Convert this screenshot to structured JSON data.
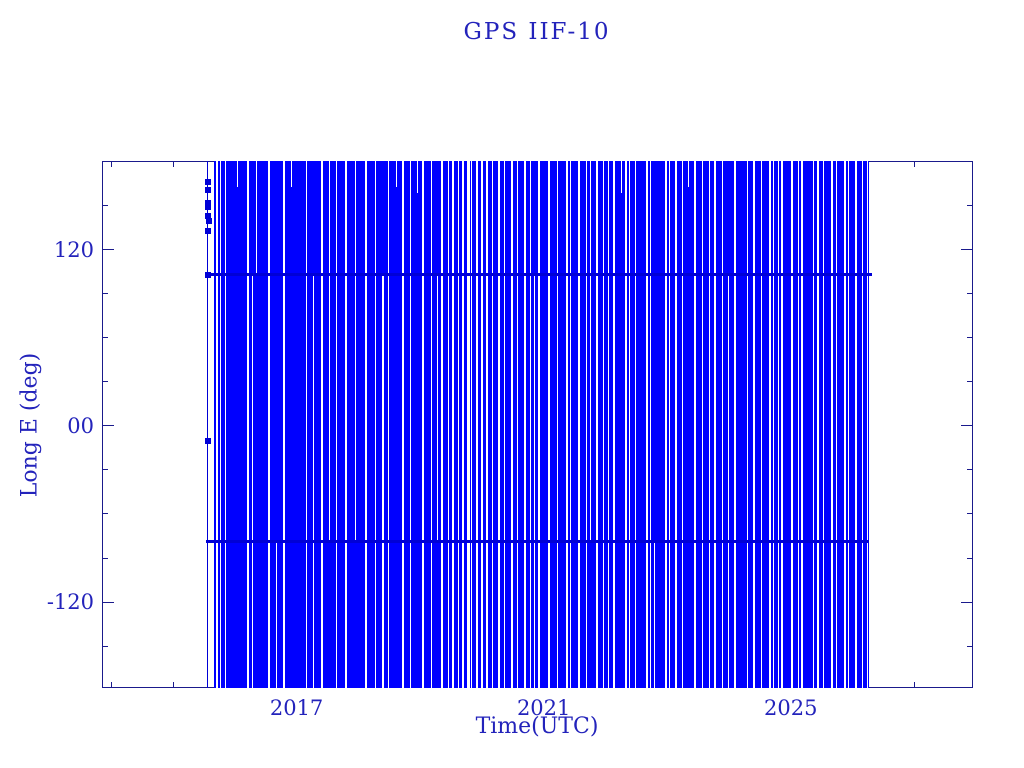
{
  "colors": {
    "background": "#ffffff",
    "data_blue": "#0000ff",
    "track_blue": "#0000d6",
    "axis_ink": "#1a1a8c",
    "text_ink": "#2323bb"
  },
  "chart_data": {
    "type": "scatter",
    "title": "GPS IIF-10",
    "xlabel": "Time(UTC)",
    "ylabel": "Long E (deg)",
    "xlim": [
      2013.85,
      2027.95
    ],
    "ylim": [
      -178.6,
      180.6
    ],
    "grid": false,
    "legend": "none",
    "x_major_ticks": [
      {
        "value": 2017,
        "label": "2017"
      },
      {
        "value": 2021,
        "label": "2021"
      },
      {
        "value": 2025,
        "label": "2025"
      }
    ],
    "x_minor_ticks": [
      2014,
      2015,
      2016,
      2018,
      2019,
      2020,
      2022,
      2023,
      2024,
      2026,
      2027
    ],
    "y_major_ticks": [
      {
        "value": 120,
        "label": "120"
      },
      {
        "value": 0,
        "label": "00"
      },
      {
        "value": -120,
        "label": "-120"
      }
    ],
    "y_minor_ticks": [
      180,
      150,
      90,
      60,
      30,
      -30,
      -60,
      -90,
      -150,
      -180
    ],
    "coverage": {
      "x_start": 2015.66,
      "x_end": 2026.27,
      "lon_min": -178.6,
      "lon_max": 180.6
    },
    "first_epoch_line_x": 2015.56,
    "early_points": [
      [
        2015.56,
        166
      ],
      [
        2015.57,
        161
      ],
      [
        2015.56,
        152
      ],
      [
        2015.57,
        149
      ],
      [
        2015.56,
        143
      ],
      [
        2015.58,
        140
      ],
      [
        2015.57,
        133
      ],
      [
        2015.56,
        103
      ],
      [
        2015.57,
        -10
      ]
    ],
    "persistent_tracks_deg": [
      103,
      -79
    ],
    "gap_stripes": [
      [
        0.004,
        2,
        0,
        1
      ],
      [
        0.009,
        1,
        0,
        1
      ],
      [
        0.017,
        1,
        0,
        1
      ],
      [
        0.035,
        1,
        0,
        0.05
      ],
      [
        0.05,
        2,
        0,
        1
      ],
      [
        0.058,
        1,
        0.214,
        1
      ],
      [
        0.065,
        1,
        0,
        0.214
      ],
      [
        0.083,
        2,
        0,
        1
      ],
      [
        0.095,
        1,
        0.722,
        1
      ],
      [
        0.106,
        2,
        0,
        1
      ],
      [
        0.118,
        1,
        0,
        0.05
      ],
      [
        0.14,
        1,
        0,
        1
      ],
      [
        0.151,
        1,
        0.214,
        1
      ],
      [
        0.163,
        2,
        0,
        1
      ],
      [
        0.175,
        1,
        0,
        0.722
      ],
      [
        0.186,
        1,
        0,
        1
      ],
      [
        0.2,
        2,
        0,
        1
      ],
      [
        0.216,
        1,
        0,
        0.722
      ],
      [
        0.231,
        2,
        0,
        1
      ],
      [
        0.246,
        1,
        0,
        1
      ],
      [
        0.257,
        2,
        0.214,
        1
      ],
      [
        0.266,
        1,
        0,
        1
      ],
      [
        0.278,
        1,
        0,
        0.05
      ],
      [
        0.287,
        2,
        0,
        1
      ],
      [
        0.3,
        1,
        0,
        1
      ],
      [
        0.31,
        1,
        0,
        0.06
      ],
      [
        0.317,
        2,
        0,
        1
      ],
      [
        0.332,
        1,
        0,
        1
      ],
      [
        0.34,
        1,
        0.214,
        0.722
      ],
      [
        0.347,
        2,
        0,
        1
      ],
      [
        0.357,
        1,
        0,
        1
      ],
      [
        0.364,
        2,
        0,
        1
      ],
      [
        0.372,
        1,
        0,
        1
      ],
      [
        0.379,
        2,
        0,
        1
      ],
      [
        0.387,
        3,
        0,
        1
      ],
      [
        0.393,
        1,
        0,
        1
      ],
      [
        0.4,
        2,
        0,
        1
      ],
      [
        0.408,
        2,
        0,
        1
      ],
      [
        0.415,
        2,
        0,
        1
      ],
      [
        0.424,
        1,
        0,
        1
      ],
      [
        0.433,
        2,
        0,
        1
      ],
      [
        0.443,
        1,
        0,
        1
      ],
      [
        0.453,
        2,
        0,
        1
      ],
      [
        0.462,
        1,
        0,
        1
      ],
      [
        0.473,
        2,
        0,
        1
      ],
      [
        0.483,
        1,
        0,
        1
      ],
      [
        0.488,
        1,
        0.214,
        1
      ],
      [
        0.495,
        2,
        0,
        1
      ],
      [
        0.51,
        2,
        0,
        1
      ],
      [
        0.523,
        1,
        0,
        1
      ],
      [
        0.538,
        2,
        0,
        1
      ],
      [
        0.544,
        1,
        0,
        1
      ],
      [
        0.556,
        2,
        0,
        1
      ],
      [
        0.568,
        1,
        0,
        1
      ],
      [
        0.574,
        1,
        0,
        0.722
      ],
      [
        0.583,
        2,
        0,
        1
      ],
      [
        0.594,
        1,
        0,
        1
      ],
      [
        0.601,
        1,
        0,
        1
      ],
      [
        0.609,
        2,
        0,
        1
      ],
      [
        0.621,
        1,
        0,
        0.06
      ],
      [
        0.628,
        2,
        0,
        1
      ],
      [
        0.634,
        1,
        0,
        1
      ],
      [
        0.643,
        1,
        0,
        1
      ],
      [
        0.659,
        2,
        0,
        1
      ],
      [
        0.666,
        1,
        0,
        1
      ],
      [
        0.672,
        1,
        0.722,
        1
      ],
      [
        0.689,
        2,
        0,
        1
      ],
      [
        0.695,
        1,
        0,
        1
      ],
      [
        0.704,
        2,
        0,
        1
      ],
      [
        0.714,
        1,
        0,
        1
      ],
      [
        0.724,
        1,
        0,
        0.05
      ],
      [
        0.733,
        2,
        0,
        1
      ],
      [
        0.745,
        1,
        0,
        1
      ],
      [
        0.755,
        1,
        0,
        1
      ],
      [
        0.763,
        2,
        0,
        1
      ],
      [
        0.775,
        1,
        0,
        1
      ],
      [
        0.785,
        1,
        0.214,
        1
      ],
      [
        0.794,
        2,
        0,
        1
      ],
      [
        0.813,
        1,
        0,
        1
      ],
      [
        0.823,
        2,
        0,
        1
      ],
      [
        0.835,
        1,
        0,
        1
      ],
      [
        0.847,
        2,
        0,
        1
      ],
      [
        0.853,
        1,
        0,
        1
      ],
      [
        0.861,
        1,
        0,
        1
      ],
      [
        0.866,
        2,
        0,
        1
      ],
      [
        0.881,
        2,
        0,
        1
      ],
      [
        0.891,
        1,
        0,
        1
      ],
      [
        0.896,
        2,
        0,
        1
      ],
      [
        0.914,
        1,
        0,
        1
      ],
      [
        0.921,
        2,
        0,
        1
      ],
      [
        0.93,
        1,
        0,
        1
      ],
      [
        0.941,
        2,
        0,
        1
      ],
      [
        0.949,
        1,
        0,
        1
      ],
      [
        0.961,
        2,
        0,
        1
      ],
      [
        0.968,
        1,
        0,
        1
      ],
      [
        0.979,
        2,
        0,
        1
      ],
      [
        0.989,
        1,
        0,
        1
      ],
      [
        0.997,
        1,
        0,
        1
      ]
    ]
  }
}
